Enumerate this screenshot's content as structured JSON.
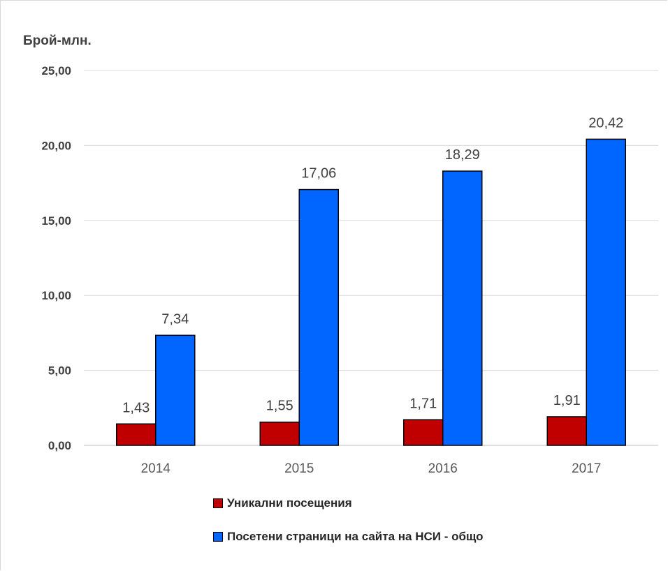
{
  "chart_data": {
    "type": "bar",
    "ylabel": "Брой-млн.",
    "xlabel": "",
    "title": "",
    "categories": [
      "2014",
      "2015",
      "2016",
      "2017"
    ],
    "ylim": [
      0,
      25
    ],
    "yticks": [
      "0,00",
      "5,00",
      "10,00",
      "15,00",
      "20,00",
      "25,00"
    ],
    "grid": true,
    "legend_position": "bottom",
    "series": [
      {
        "name": "Уникални посещения",
        "color": "#c00000",
        "values": [
          1.43,
          1.55,
          1.71,
          1.91
        ],
        "labels": [
          "1,43",
          "1,55",
          "1,71",
          "1,91"
        ]
      },
      {
        "name": "Посетени страници на сайта на НСИ - общо",
        "color": "#0066ff",
        "values": [
          7.34,
          17.06,
          18.29,
          20.42
        ],
        "labels": [
          "7,34",
          "17,06",
          "18,29",
          "20,42"
        ]
      }
    ]
  }
}
